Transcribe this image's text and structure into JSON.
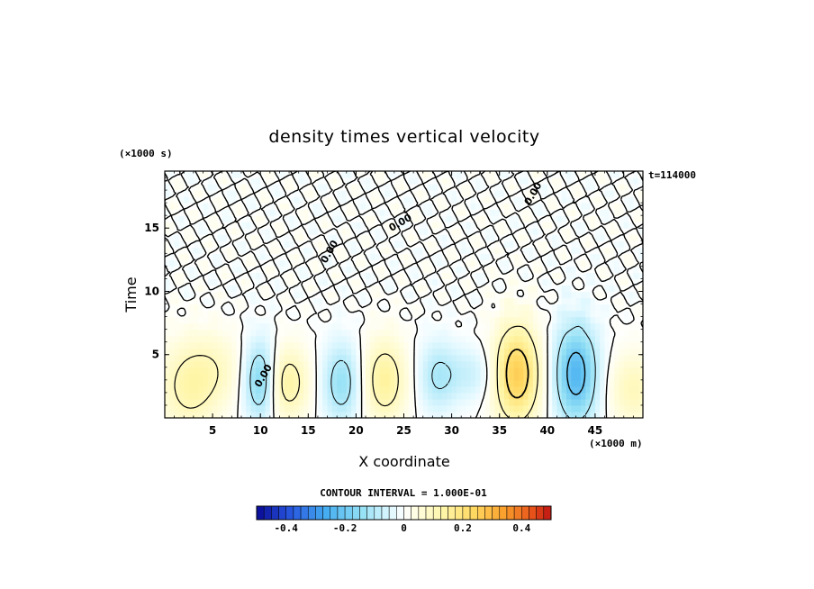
{
  "chart_data": {
    "type": "heatmap",
    "title": "density times vertical velocity",
    "xlabel": "X coordinate",
    "ylabel": "Time",
    "x_unit": "(×1000 m)",
    "y_unit": "(×1000 s)",
    "time_stamp": "t=114000",
    "xlim": [
      0,
      50
    ],
    "ylim": [
      0,
      19.5
    ],
    "x_ticks": [
      5,
      10,
      15,
      20,
      25,
      30,
      35,
      40,
      45
    ],
    "y_ticks": [
      5,
      10,
      15
    ],
    "contour_label": "0.00",
    "contour_interval_text": "CONTOUR INTERVAL = 1.000E-01",
    "colorbar": {
      "range": [
        -0.5,
        0.5
      ],
      "ticks": [
        "-0.4",
        "-0.2",
        "0",
        "0.2",
        "0.4"
      ],
      "tick_values": [
        -0.4,
        -0.2,
        0,
        0.2,
        0.4
      ],
      "n_bins": 40
    },
    "features": [
      {
        "x": 2.5,
        "t": 2.5,
        "sx": 2.2,
        "st": 2.5,
        "value": 0.12
      },
      {
        "x": 5.5,
        "t": 4.0,
        "sx": 2.0,
        "st": 2.0,
        "value": 0.06
      },
      {
        "x": 10.0,
        "t": 3.0,
        "sx": 1.2,
        "st": 2.2,
        "value": -0.18
      },
      {
        "x": 12.8,
        "t": 2.8,
        "sx": 1.6,
        "st": 2.0,
        "value": 0.14
      },
      {
        "x": 18.5,
        "t": 2.8,
        "sx": 1.4,
        "st": 2.2,
        "value": -0.14
      },
      {
        "x": 23.0,
        "t": 3.0,
        "sx": 1.6,
        "st": 2.3,
        "value": 0.15
      },
      {
        "x": 28.5,
        "t": 3.3,
        "sx": 1.4,
        "st": 2.0,
        "value": -0.1
      },
      {
        "x": 32.0,
        "t": 3.5,
        "sx": 2.0,
        "st": 1.5,
        "value": -0.07
      },
      {
        "x": 36.8,
        "t": 3.5,
        "sx": 1.7,
        "st": 2.7,
        "value": 0.26
      },
      {
        "x": 43.0,
        "t": 3.5,
        "sx": 1.6,
        "st": 2.8,
        "value": -0.24
      },
      {
        "x": 49.0,
        "t": 2.3,
        "sx": 1.8,
        "st": 2.0,
        "value": 0.1
      }
    ]
  }
}
